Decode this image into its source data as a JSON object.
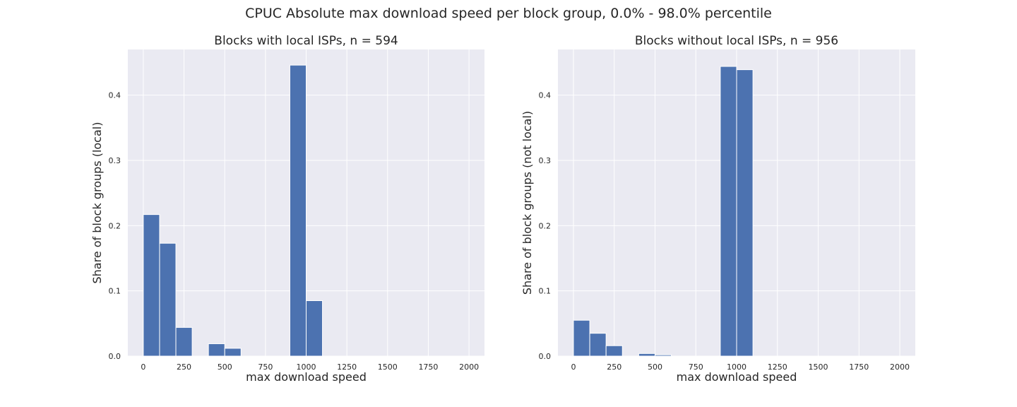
{
  "figure": {
    "title": "CPUC Absolute max download speed per block group, 0.0% - 98.0% percentile"
  },
  "colors": {
    "background": "#eaeaf2",
    "grid": "#ffffff",
    "bar": "#4c72b0",
    "bar_edge": "#ffffff",
    "text": "#262626"
  },
  "chart_data": [
    {
      "type": "bar",
      "title": "Blocks with local ISPs, n = 594",
      "xlabel": "max download speed",
      "ylabel": "Share of block groups (local)",
      "xlim": [
        -95,
        2095
      ],
      "ylim": [
        0,
        0.47
      ],
      "xticks": [
        0,
        250,
        500,
        750,
        1000,
        1250,
        1500,
        1750,
        2000
      ],
      "xtick_labels": [
        "0",
        "250",
        "500",
        "750",
        "1000",
        "1250",
        "1500",
        "1750",
        "2000"
      ],
      "yticks": [
        0.0,
        0.1,
        0.2,
        0.3,
        0.4
      ],
      "ytick_labels": [
        "0.0",
        "0.1",
        "0.2",
        "0.3",
        "0.4"
      ],
      "grid": true,
      "bin_width": 100,
      "bins": [
        {
          "x0": 0,
          "x1": 100,
          "value": 0.217
        },
        {
          "x0": 100,
          "x1": 200,
          "value": 0.173
        },
        {
          "x0": 200,
          "x1": 300,
          "value": 0.044
        },
        {
          "x0": 300,
          "x1": 400,
          "value": 0.0
        },
        {
          "x0": 400,
          "x1": 500,
          "value": 0.019
        },
        {
          "x0": 500,
          "x1": 600,
          "value": 0.012
        },
        {
          "x0": 600,
          "x1": 700,
          "value": 0.0
        },
        {
          "x0": 700,
          "x1": 800,
          "value": 0.0
        },
        {
          "x0": 800,
          "x1": 900,
          "value": 0.0
        },
        {
          "x0": 900,
          "x1": 1000,
          "value": 0.446
        },
        {
          "x0": 1000,
          "x1": 1100,
          "value": 0.085
        },
        {
          "x0": 1100,
          "x1": 1200,
          "value": 0.0
        },
        {
          "x0": 1200,
          "x1": 1300,
          "value": 0.0
        },
        {
          "x0": 1300,
          "x1": 1400,
          "value": 0.0
        },
        {
          "x0": 1400,
          "x1": 1500,
          "value": 0.0
        },
        {
          "x0": 1500,
          "x1": 1600,
          "value": 0.0
        },
        {
          "x0": 1600,
          "x1": 1700,
          "value": 0.0
        },
        {
          "x0": 1700,
          "x1": 1800,
          "value": 0.0
        },
        {
          "x0": 1800,
          "x1": 1900,
          "value": 0.0
        },
        {
          "x0": 1900,
          "x1": 2000,
          "value": 0.0
        }
      ]
    },
    {
      "type": "bar",
      "title": "Blocks without local ISPs, n = 956",
      "xlabel": "max download speed",
      "ylabel": "Share of block groups (not local)",
      "xlim": [
        -95,
        2095
      ],
      "ylim": [
        0,
        0.47
      ],
      "xticks": [
        0,
        250,
        500,
        750,
        1000,
        1250,
        1500,
        1750,
        2000
      ],
      "xtick_labels": [
        "0",
        "250",
        "500",
        "750",
        "1000",
        "1250",
        "1500",
        "1750",
        "2000"
      ],
      "yticks": [
        0.0,
        0.1,
        0.2,
        0.3,
        0.4
      ],
      "ytick_labels": [
        "0.0",
        "0.1",
        "0.2",
        "0.3",
        "0.4"
      ],
      "grid": true,
      "bin_width": 100,
      "bins": [
        {
          "x0": 0,
          "x1": 100,
          "value": 0.055
        },
        {
          "x0": 100,
          "x1": 200,
          "value": 0.035
        },
        {
          "x0": 200,
          "x1": 300,
          "value": 0.016
        },
        {
          "x0": 300,
          "x1": 400,
          "value": 0.0
        },
        {
          "x0": 400,
          "x1": 500,
          "value": 0.004
        },
        {
          "x0": 500,
          "x1": 600,
          "value": 0.002
        },
        {
          "x0": 600,
          "x1": 700,
          "value": 0.0
        },
        {
          "x0": 700,
          "x1": 800,
          "value": 0.0
        },
        {
          "x0": 800,
          "x1": 900,
          "value": 0.0
        },
        {
          "x0": 900,
          "x1": 1000,
          "value": 0.444
        },
        {
          "x0": 1000,
          "x1": 1100,
          "value": 0.439
        },
        {
          "x0": 1100,
          "x1": 1200,
          "value": 0.0
        },
        {
          "x0": 1200,
          "x1": 1300,
          "value": 0.0
        },
        {
          "x0": 1300,
          "x1": 1400,
          "value": 0.0
        },
        {
          "x0": 1400,
          "x1": 1500,
          "value": 0.0
        },
        {
          "x0": 1500,
          "x1": 1600,
          "value": 0.0
        },
        {
          "x0": 1600,
          "x1": 1700,
          "value": 0.0
        },
        {
          "x0": 1700,
          "x1": 1800,
          "value": 0.0
        },
        {
          "x0": 1800,
          "x1": 1900,
          "value": 0.0
        },
        {
          "x0": 1900,
          "x1": 2000,
          "value": 0.0
        }
      ]
    }
  ]
}
